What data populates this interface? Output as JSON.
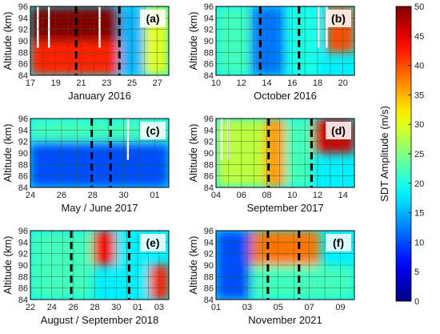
{
  "chart_data": [
    {
      "type": "heatmap",
      "panel": "(a)",
      "xlabel": "January 2016",
      "ylabel": "Altitude (km)",
      "x_ticks": [
        "17",
        "19",
        "21",
        "23",
        "25",
        "27"
      ],
      "y_ticks": [
        84,
        86,
        88,
        90,
        92,
        94,
        96
      ],
      "xlim": [
        17,
        28.2
      ],
      "ylim": [
        84,
        96
      ],
      "dashed_lines_x": [
        20.7,
        24.2
      ],
      "white_gaps_x": [
        17.6,
        18.5,
        22.6
      ],
      "intensity_regions": [
        {
          "x": [
            17.0,
            24.2
          ],
          "y": [
            90,
            96
          ],
          "amplitude": 50
        },
        {
          "x": [
            17.0,
            24.2
          ],
          "y": [
            84,
            90
          ],
          "amplitude": 42
        },
        {
          "x": [
            24.2,
            26.2
          ],
          "y": [
            84,
            96
          ],
          "amplitude": 15
        },
        {
          "x": [
            26.2,
            28.2
          ],
          "y": [
            84,
            96
          ],
          "amplitude": 30
        }
      ]
    },
    {
      "type": "heatmap",
      "panel": "(b)",
      "xlabel": "October 2016",
      "ylabel": "Altitude (km)",
      "x_ticks": [
        "10",
        "12",
        "14",
        "16",
        "18",
        "20"
      ],
      "y_ticks": [
        84,
        86,
        88,
        90,
        92,
        94,
        96
      ],
      "xlim": [
        10,
        20
      ],
      "ylim": [
        84,
        96
      ],
      "dashed_lines_x": [
        13.2,
        16.0
      ],
      "white_gaps_x": [
        17.4,
        18.0
      ],
      "intensity_regions": [
        {
          "x": [
            10,
            12.5
          ],
          "y": [
            84,
            96
          ],
          "amplitude": 22
        },
        {
          "x": [
            12.5,
            15.0
          ],
          "y": [
            84,
            96
          ],
          "amplitude": 12
        },
        {
          "x": [
            15.0,
            17.4
          ],
          "y": [
            84,
            96
          ],
          "amplitude": 20
        },
        {
          "x": [
            18.0,
            20.0
          ],
          "y": [
            88,
            96
          ],
          "amplitude": 40
        }
      ]
    },
    {
      "type": "heatmap",
      "panel": "(c)",
      "xlabel": "May / June 2017",
      "ylabel": "Altitude (km)",
      "x_ticks": [
        "24",
        "26",
        "28",
        "30",
        "01"
      ],
      "y_ticks": [
        84,
        86,
        88,
        90,
        92,
        94,
        96
      ],
      "xlim": [
        24,
        32.8
      ],
      "ylim": [
        84,
        96
      ],
      "dashed_lines_x": [
        27.9,
        29.1
      ],
      "white_gaps_x": [
        30.2
      ],
      "intensity_regions": [
        {
          "x": [
            24,
            32.8
          ],
          "y": [
            92,
            96
          ],
          "amplitude": 22
        },
        {
          "x": [
            24,
            32.8
          ],
          "y": [
            84,
            92
          ],
          "amplitude": 10
        }
      ]
    },
    {
      "type": "heatmap",
      "panel": "(d)",
      "xlabel": "September 2017",
      "ylabel": "Altitude (km)",
      "x_ticks": [
        "04",
        "06",
        "08",
        "10",
        "12",
        "14"
      ],
      "y_ticks": [
        84,
        86,
        88,
        90,
        92,
        94,
        96
      ],
      "xlim": [
        4,
        14
      ],
      "ylim": [
        84,
        96
      ],
      "dashed_lines_x": [
        7.8,
        10.9
      ],
      "white_gaps_x": [
        4.4,
        4.9
      ],
      "intensity_regions": [
        {
          "x": [
            4,
            7.5
          ],
          "y": [
            84,
            96
          ],
          "amplitude": 28
        },
        {
          "x": [
            7.5,
            9.0
          ],
          "y": [
            84,
            96
          ],
          "amplitude": 36
        },
        {
          "x": [
            9.0,
            11.0
          ],
          "y": [
            84,
            96
          ],
          "amplitude": 22
        },
        {
          "x": [
            11.0,
            14.0
          ],
          "y": [
            90,
            96
          ],
          "amplitude": 46
        }
      ]
    },
    {
      "type": "heatmap",
      "panel": "(e)",
      "xlabel": "August / September 2018",
      "ylabel": "Altitude (km)",
      "x_ticks": [
        "22",
        "24",
        "26",
        "28",
        "30",
        "01",
        "03"
      ],
      "y_ticks": [
        84,
        86,
        88,
        90,
        92,
        94,
        96
      ],
      "xlim": [
        22,
        34.2
      ],
      "ylim": [
        84,
        96
      ],
      "dashed_lines_x": [
        25.6,
        30.7
      ],
      "white_gaps_x": [],
      "intensity_regions": [
        {
          "x": [
            22,
            27.5
          ],
          "y": [
            84,
            96
          ],
          "amplitude": 22
        },
        {
          "x": [
            27.5,
            29.5
          ],
          "y": [
            90,
            96
          ],
          "amplitude": 44
        },
        {
          "x": [
            29.5,
            32.5
          ],
          "y": [
            84,
            96
          ],
          "amplitude": 18
        },
        {
          "x": [
            32.5,
            34.2
          ],
          "y": [
            84,
            90
          ],
          "amplitude": 42
        }
      ]
    },
    {
      "type": "heatmap",
      "panel": "(f)",
      "xlabel": "November 2021",
      "ylabel": "Altitude (km)",
      "x_ticks": [
        "01",
        "03",
        "05",
        "07",
        "09"
      ],
      "y_ticks": [
        84,
        86,
        88,
        90,
        92,
        94,
        96
      ],
      "xlim": [
        1,
        9
      ],
      "ylim": [
        84,
        96
      ],
      "dashed_lines_x": [
        4.0,
        5.8
      ],
      "white_gaps_x": [],
      "intensity_regions": [
        {
          "x": [
            1,
            3.0
          ],
          "y": [
            84,
            96
          ],
          "amplitude": 10
        },
        {
          "x": [
            3.0,
            7.0
          ],
          "y": [
            90,
            96
          ],
          "amplitude": 38
        },
        {
          "x": [
            3.0,
            9.0
          ],
          "y": [
            84,
            90
          ],
          "amplitude": 22
        }
      ]
    }
  ],
  "colorbar": {
    "label": "SDT Amplitude (m/s)",
    "min": 0,
    "max": 50,
    "ticks": [
      0,
      5,
      10,
      15,
      20,
      25,
      30,
      35,
      40,
      45,
      50
    ],
    "colormap": "jet"
  }
}
